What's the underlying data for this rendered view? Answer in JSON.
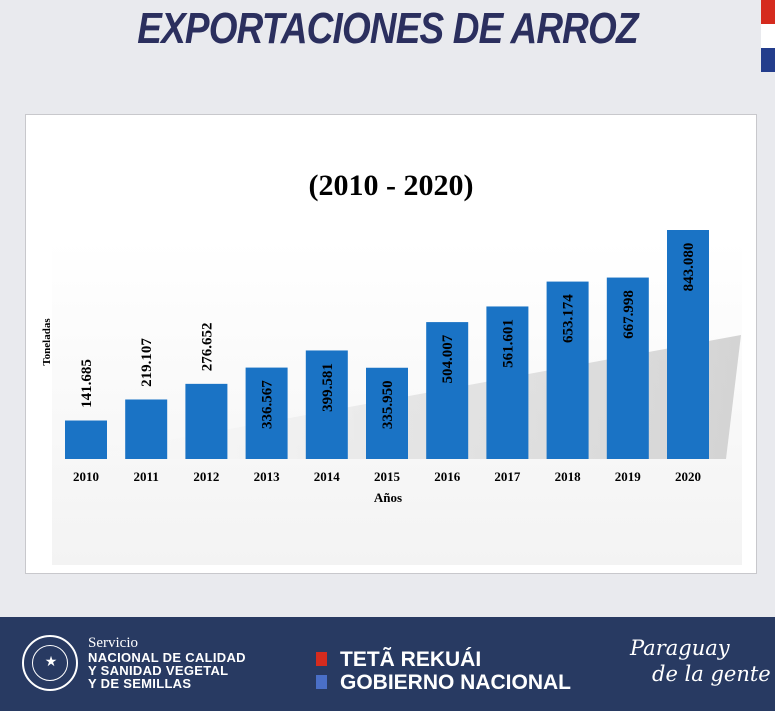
{
  "header": {
    "title": "EXPORTACIONES DE ARROZ"
  },
  "colors": {
    "title": "#2b2f5e",
    "bar": "#1a73c5",
    "footer": "#283a62",
    "flag_red": "#d52b1e",
    "flag_blue": "#233d8c"
  },
  "chart_data": {
    "type": "bar",
    "title": "(2010 - 2020)",
    "xlabel": "Años",
    "ylabel": "Toneladas",
    "categories": [
      "2010",
      "2011",
      "2012",
      "2013",
      "2014",
      "2015",
      "2016",
      "2017",
      "2018",
      "2019",
      "2020"
    ],
    "values": [
      141685,
      219107,
      276652,
      336567,
      399581,
      335950,
      504007,
      561601,
      653174,
      667998,
      843080
    ],
    "labels": [
      "141.685",
      "219.107",
      "276.652",
      "336.567",
      "399.581",
      "335.950",
      "504.007",
      "561.601",
      "653.174",
      "667.998",
      "843.080"
    ],
    "ylim": [
      0,
      843080
    ],
    "grid": false
  },
  "footer": {
    "servicio": "Servicio",
    "org_lines": [
      "NACIONAL DE CALIDAD",
      "Y SANIDAD VEGETAL",
      "Y DE SEMILLAS"
    ],
    "gov_line1": "TETÃ REKUÁI",
    "gov_line2": "GOBIERNO NACIONAL",
    "slogan_line1": "Paraguay",
    "slogan_line2": "de la gente",
    "seal_icon": "national-seal-icon"
  }
}
